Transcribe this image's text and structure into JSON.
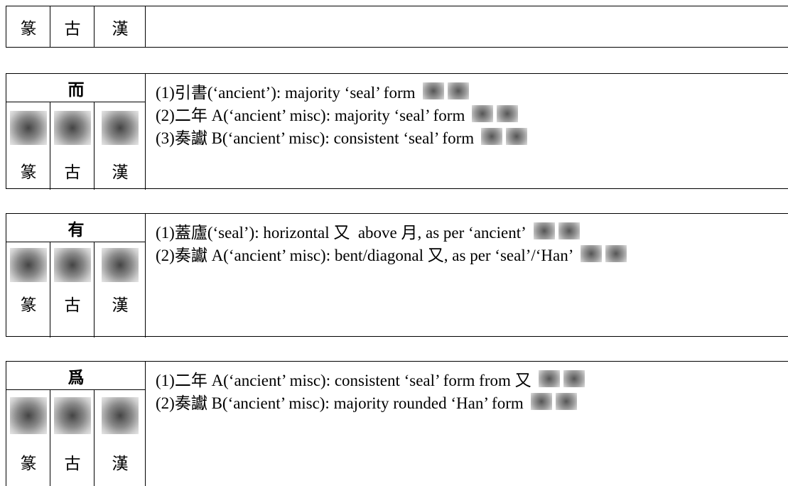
{
  "header_row": {
    "cells": [
      "篆",
      "古",
      "漢"
    ]
  },
  "entries": [
    {
      "character": "而",
      "labels": [
        "篆",
        "古",
        "漢"
      ],
      "notes": [
        "(1)引書(‘ancient’): majority ‘seal’ form",
        "(2)二年 A(‘ancient’ misc): majority ‘seal’ form",
        "(3)奏讞 B(‘ancient’ misc): consistent ‘seal’ form"
      ]
    },
    {
      "character": "有",
      "labels": [
        "篆",
        "古",
        "漢"
      ],
      "notes": [
        "(1)蓋廬(‘seal’): horizontal 又  above 月, as per ‘ancient’",
        "(2)奏讞 A(‘ancient’ misc): bent/diagonal 又, as per ‘seal’/‘Han’"
      ]
    },
    {
      "character": "爲",
      "labels": [
        "篆",
        "古",
        "漢"
      ],
      "notes": [
        "(1)二年 A(‘ancient’ misc): consistent ‘seal’ form from 又",
        "(2)奏讞 B(‘ancient’ misc): majority rounded ‘Han’ form"
      ]
    }
  ]
}
